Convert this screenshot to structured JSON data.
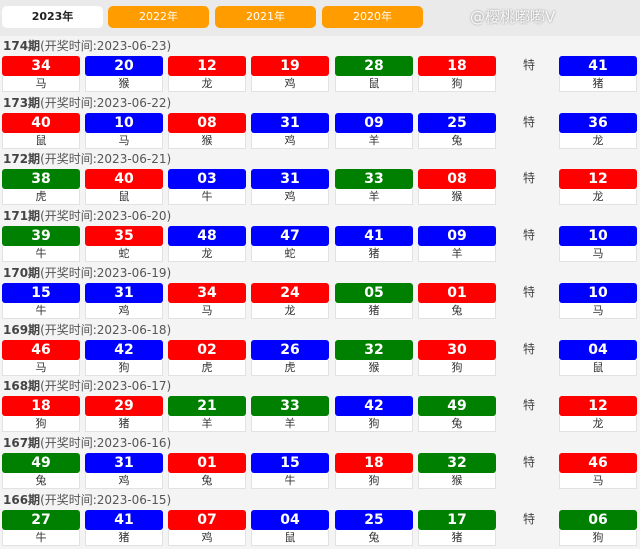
{
  "tabs": [
    {
      "label": "2023年",
      "active": true
    },
    {
      "label": "2022年",
      "active": false
    },
    {
      "label": "2021年",
      "active": false
    },
    {
      "label": "2020年",
      "active": false
    }
  ],
  "special_label": "特",
  "colors": {
    "R": "#ff0000",
    "B": "#0000ff",
    "G": "#008000"
  },
  "watermark": "@樱桃嘟嘟V",
  "draws": [
    {
      "issue": "174期",
      "time": "(开奖时间:2023-06-23)",
      "balls": [
        [
          "34",
          "马",
          "R"
        ],
        [
          "20",
          "猴",
          "B"
        ],
        [
          "12",
          "龙",
          "R"
        ],
        [
          "19",
          "鸡",
          "R"
        ],
        [
          "28",
          "鼠",
          "G"
        ],
        [
          "18",
          "狗",
          "R"
        ],
        [
          "41",
          "猪",
          "B"
        ]
      ]
    },
    {
      "issue": "173期",
      "time": "(开奖时间:2023-06-22)",
      "balls": [
        [
          "40",
          "鼠",
          "R"
        ],
        [
          "10",
          "马",
          "B"
        ],
        [
          "08",
          "猴",
          "R"
        ],
        [
          "31",
          "鸡",
          "B"
        ],
        [
          "09",
          "羊",
          "B"
        ],
        [
          "25",
          "兔",
          "B"
        ],
        [
          "36",
          "龙",
          "B"
        ]
      ]
    },
    {
      "issue": "172期",
      "time": "(开奖时间:2023-06-21)",
      "balls": [
        [
          "38",
          "虎",
          "G"
        ],
        [
          "40",
          "鼠",
          "R"
        ],
        [
          "03",
          "牛",
          "B"
        ],
        [
          "31",
          "鸡",
          "B"
        ],
        [
          "33",
          "羊",
          "G"
        ],
        [
          "08",
          "猴",
          "R"
        ],
        [
          "12",
          "龙",
          "R"
        ]
      ]
    },
    {
      "issue": "171期",
      "time": "(开奖时间:2023-06-20)",
      "balls": [
        [
          "39",
          "牛",
          "G"
        ],
        [
          "35",
          "蛇",
          "R"
        ],
        [
          "48",
          "龙",
          "B"
        ],
        [
          "47",
          "蛇",
          "B"
        ],
        [
          "41",
          "猪",
          "B"
        ],
        [
          "09",
          "羊",
          "B"
        ],
        [
          "10",
          "马",
          "B"
        ]
      ]
    },
    {
      "issue": "170期",
      "time": "(开奖时间:2023-06-19)",
      "balls": [
        [
          "15",
          "牛",
          "B"
        ],
        [
          "31",
          "鸡",
          "B"
        ],
        [
          "34",
          "马",
          "R"
        ],
        [
          "24",
          "龙",
          "R"
        ],
        [
          "05",
          "猪",
          "G"
        ],
        [
          "01",
          "兔",
          "R"
        ],
        [
          "10",
          "马",
          "B"
        ]
      ]
    },
    {
      "issue": "169期",
      "time": "(开奖时间:2023-06-18)",
      "balls": [
        [
          "46",
          "马",
          "R"
        ],
        [
          "42",
          "狗",
          "B"
        ],
        [
          "02",
          "虎",
          "R"
        ],
        [
          "26",
          "虎",
          "B"
        ],
        [
          "32",
          "猴",
          "G"
        ],
        [
          "30",
          "狗",
          "R"
        ],
        [
          "04",
          "鼠",
          "B"
        ]
      ]
    },
    {
      "issue": "168期",
      "time": "(开奖时间:2023-06-17)",
      "balls": [
        [
          "18",
          "狗",
          "R"
        ],
        [
          "29",
          "猪",
          "R"
        ],
        [
          "21",
          "羊",
          "G"
        ],
        [
          "33",
          "羊",
          "G"
        ],
        [
          "42",
          "狗",
          "B"
        ],
        [
          "49",
          "兔",
          "G"
        ],
        [
          "12",
          "龙",
          "R"
        ]
      ]
    },
    {
      "issue": "167期",
      "time": "(开奖时间:2023-06-16)",
      "balls": [
        [
          "49",
          "兔",
          "G"
        ],
        [
          "31",
          "鸡",
          "B"
        ],
        [
          "01",
          "兔",
          "R"
        ],
        [
          "15",
          "牛",
          "B"
        ],
        [
          "18",
          "狗",
          "R"
        ],
        [
          "32",
          "猴",
          "G"
        ],
        [
          "46",
          "马",
          "R"
        ]
      ]
    },
    {
      "issue": "166期",
      "time": "(开奖时间:2023-06-15)",
      "balls": [
        [
          "27",
          "牛",
          "G"
        ],
        [
          "41",
          "猪",
          "B"
        ],
        [
          "07",
          "鸡",
          "R"
        ],
        [
          "04",
          "鼠",
          "B"
        ],
        [
          "25",
          "兔",
          "B"
        ],
        [
          "17",
          "猪",
          "G"
        ],
        [
          "06",
          "狗",
          "G"
        ]
      ]
    }
  ]
}
